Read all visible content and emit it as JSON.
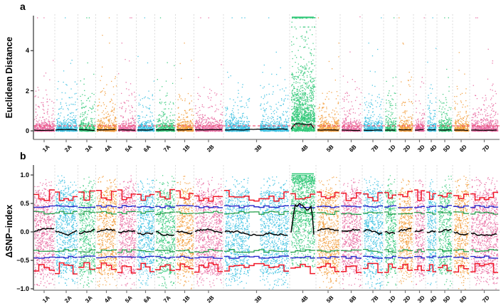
{
  "panels": {
    "a": {
      "panel_label": "a",
      "y_axis_title": "Euclidean Distance",
      "y_ticks": [
        {
          "value": 4,
          "label": "4"
        },
        {
          "value": 2,
          "label": "2"
        },
        {
          "value": 0,
          "label": "0"
        }
      ]
    },
    "b": {
      "panel_label": "b",
      "y_axis_title": "ΔSNP−index",
      "y_ticks": [
        {
          "value": 1.0,
          "label": "1.0"
        },
        {
          "value": 0.5,
          "label": "0.5"
        },
        {
          "value": 0.0,
          "label": "0.0"
        },
        {
          "value": -0.5,
          "label": "−0.5"
        },
        {
          "value": -1.0,
          "label": "−1.0"
        }
      ]
    }
  },
  "x_axis": {
    "chromosome_labels": [
      "1A",
      "2A",
      "3A",
      "4A",
      "5A",
      "6A",
      "7A",
      "1B",
      "2B",
      "3B",
      "4B",
      "5B",
      "6B",
      "7B",
      "1D",
      "2D",
      "3D",
      "4D",
      "5D",
      "6D",
      "7D"
    ]
  },
  "chart_data": [
    {
      "panel": "a",
      "type": "scatter",
      "ylabel": "Euclidean Distance",
      "ylim": [
        0,
        5.8
      ],
      "yticks": [
        0,
        2,
        4
      ],
      "grid": false,
      "point_max_cap": 5.66,
      "threshold_line": {
        "value": 0.25,
        "color": "#F2486C",
        "style": "dashed"
      },
      "fitted_line_color": "#000000",
      "separator_color": "#DBDBDB",
      "chromosomes": [
        {
          "name": "1A",
          "color": "#E8679F",
          "span": [
            47,
            77
          ],
          "fitted_ed": 0.05
        },
        {
          "name": "2A",
          "color": "#38BFE0",
          "span": [
            77,
            109
          ],
          "fitted_ed": 0.05
        },
        {
          "name": "3A",
          "color": "#31C878",
          "span": [
            110,
            134
          ],
          "fitted_ed": 0.05
        },
        {
          "name": "4A",
          "color": "#F29B38",
          "span": [
            135,
            164
          ],
          "fitted_ed": 0.05
        },
        {
          "name": "5A",
          "color": "#E8679F",
          "span": [
            165,
            191
          ],
          "fitted_ed": 0.05
        },
        {
          "name": "6A",
          "color": "#38BFE0",
          "span": [
            192,
            217
          ],
          "fitted_ed": 0.05
        },
        {
          "name": "7A",
          "color": "#31C878",
          "span": [
            218,
            246
          ],
          "fitted_ed": 0.05
        },
        {
          "name": "1B",
          "color": "#F29B38",
          "span": [
            247,
            272
          ],
          "fitted_ed": 0.05
        },
        {
          "name": "2B",
          "color": "#E8679F",
          "span": [
            273,
            313
          ],
          "fitted_ed": 0.05
        },
        {
          "name": "3B",
          "color": "#38BFE0",
          "span": [
            315,
            406
          ],
          "gap_span": [
            351,
            364
          ],
          "fitted_ed": 0.05
        },
        {
          "name": "4B",
          "color": "#31C878",
          "span": [
            408,
            443
          ],
          "fitted_ed": 0.32,
          "qtl_peak": true,
          "cap_row_at": 5.66
        },
        {
          "name": "5B",
          "color": "#F29B38",
          "span": [
            445,
            477
          ],
          "fitted_ed": 0.05
        },
        {
          "name": "6B",
          "color": "#E8679F",
          "span": [
            479,
            508
          ],
          "fitted_ed": 0.05
        },
        {
          "name": "7B",
          "color": "#38BFE0",
          "span": [
            510,
            538
          ],
          "fitted_ed": 0.05
        },
        {
          "name": "1D",
          "color": "#31C878",
          "span": [
            540,
            557
          ],
          "fitted_ed": 0.05
        },
        {
          "name": "2D",
          "color": "#F29B38",
          "span": [
            559,
            580
          ],
          "fitted_ed": 0.05
        },
        {
          "name": "3D",
          "color": "#E8679F",
          "span": [
            582,
            597
          ],
          "fitted_ed": 0.05
        },
        {
          "name": "4D",
          "color": "#38BFE0",
          "span": [
            599,
            613
          ],
          "fitted_ed": 0.05
        },
        {
          "name": "5D",
          "color": "#31C878",
          "span": [
            615,
            635
          ],
          "fitted_ed": 0.05
        },
        {
          "name": "6D",
          "color": "#F29B38",
          "span": [
            637,
            659
          ],
          "fitted_ed": 0.05
        },
        {
          "name": "7D",
          "color": "#E8679F",
          "span": [
            661,
            700
          ],
          "fitted_ed": 0.05
        }
      ]
    },
    {
      "panel": "b",
      "type": "scatter",
      "ylabel": "ΔSNP−index",
      "ylim": [
        -1,
        1
      ],
      "yticks": [
        1.0,
        0.5,
        0.0,
        -0.5,
        -1.0
      ],
      "grid": false,
      "zero_line": {
        "value": 0,
        "color": "#A8A8A8",
        "style": "dashed"
      },
      "confidence_bands": [
        {
          "id": "red_line",
          "color": "#F01828",
          "abs_level": 0.6,
          "mirrored": true,
          "shape": "stepped"
        },
        {
          "id": "blue_line",
          "color": "#2A2ACC",
          "abs_level": 0.46,
          "mirrored": true,
          "shape": "stepped"
        },
        {
          "id": "green_line",
          "color": "#1E9C46",
          "abs_level": 0.35,
          "mirrored": true,
          "shape": "stepped"
        }
      ],
      "fitted_line_color": "#000000",
      "chromosomes": [
        {
          "name": "1A",
          "color": "#E8679F",
          "span": [
            47,
            77
          ],
          "delta_snp_index_mean": 0.0
        },
        {
          "name": "2A",
          "color": "#38BFE0",
          "span": [
            77,
            109
          ],
          "delta_snp_index_mean": 0.0
        },
        {
          "name": "3A",
          "color": "#31C878",
          "span": [
            110,
            134
          ],
          "delta_snp_index_mean": 0.0
        },
        {
          "name": "4A",
          "color": "#F29B38",
          "span": [
            135,
            164
          ],
          "delta_snp_index_mean": 0.0
        },
        {
          "name": "5A",
          "color": "#E8679F",
          "span": [
            165,
            191
          ],
          "delta_snp_index_mean": 0.0
        },
        {
          "name": "6A",
          "color": "#38BFE0",
          "span": [
            192,
            217
          ],
          "delta_snp_index_mean": 0.0
        },
        {
          "name": "7A",
          "color": "#31C878",
          "span": [
            218,
            246
          ],
          "delta_snp_index_mean": 0.0
        },
        {
          "name": "1B",
          "color": "#F29B38",
          "span": [
            247,
            272
          ],
          "delta_snp_index_mean": 0.0
        },
        {
          "name": "2B",
          "color": "#E8679F",
          "span": [
            273,
            313
          ],
          "delta_snp_index_mean": 0.0
        },
        {
          "name": "3B",
          "color": "#38BFE0",
          "span": [
            315,
            406
          ],
          "gap_span": [
            351,
            364
          ],
          "delta_snp_index_mean": 0.0
        },
        {
          "name": "4B",
          "color": "#31C878",
          "span": [
            408,
            443
          ],
          "delta_snp_index_mean": 0.44,
          "qtl_peak": true,
          "cap_row_at": 1.0
        },
        {
          "name": "5B",
          "color": "#F29B38",
          "span": [
            445,
            477
          ],
          "delta_snp_index_mean": 0.0
        },
        {
          "name": "6B",
          "color": "#E8679F",
          "span": [
            479,
            508
          ],
          "delta_snp_index_mean": 0.0
        },
        {
          "name": "7B",
          "color": "#38BFE0",
          "span": [
            510,
            538
          ],
          "delta_snp_index_mean": 0.0
        },
        {
          "name": "1D",
          "color": "#31C878",
          "span": [
            540,
            557
          ],
          "delta_snp_index_mean": 0.0
        },
        {
          "name": "2D",
          "color": "#F29B38",
          "span": [
            559,
            580
          ],
          "delta_snp_index_mean": 0.0
        },
        {
          "name": "3D",
          "color": "#E8679F",
          "span": [
            582,
            597
          ],
          "delta_snp_index_mean": 0.0
        },
        {
          "name": "4D",
          "color": "#38BFE0",
          "span": [
            599,
            613
          ],
          "delta_snp_index_mean": 0.0
        },
        {
          "name": "5D",
          "color": "#31C878",
          "span": [
            615,
            635
          ],
          "delta_snp_index_mean": 0.0
        },
        {
          "name": "6D",
          "color": "#F29B38",
          "span": [
            637,
            659
          ],
          "delta_snp_index_mean": 0.0
        },
        {
          "name": "7D",
          "color": "#E8679F",
          "span": [
            661,
            700
          ],
          "delta_snp_index_mean": 0.0
        }
      ]
    }
  ]
}
